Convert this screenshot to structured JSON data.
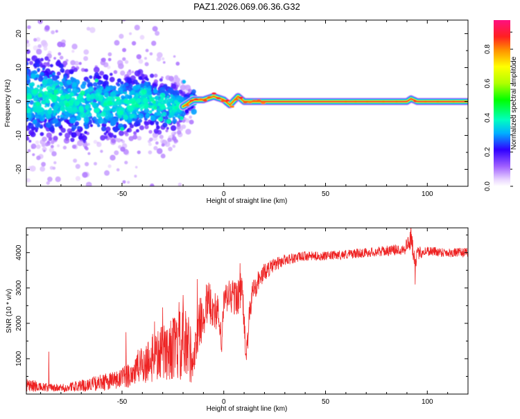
{
  "title": "PAZ1.2026.069.06.36.G32",
  "chart_data": [
    {
      "type": "heatmap",
      "xlabel": "Height of straight line (km)",
      "ylabel": "Frequency (Hz)",
      "xlim": [
        -97,
        120
      ],
      "ylim": [
        -25,
        24
      ],
      "xticks": [
        -50,
        0,
        50,
        100
      ],
      "xtick_labels": [
        "-50",
        "0",
        "50",
        "100"
      ],
      "yticks": [
        -20,
        -10,
        0,
        10,
        20
      ],
      "ytick_labels": [
        "-20",
        "-10",
        "0",
        "10",
        "20"
      ],
      "colorbar": {
        "label": "Normalized spectral amplitude",
        "range": [
          0,
          1
        ],
        "ticks": [
          0.0,
          0.2,
          0.4,
          0.6,
          0.8
        ],
        "tick_labels": [
          "0.0",
          "0.2",
          "0.4",
          "0.6",
          "0.8"
        ],
        "colormap": "rainbow-magenta"
      },
      "description_points": {
        "ridge": [
          [
            -97,
            1.5
          ],
          [
            -80,
            1.0
          ],
          [
            -70,
            -1.0
          ],
          [
            -60,
            -0.5
          ],
          [
            -50,
            -1.5
          ],
          [
            -40,
            0.5
          ],
          [
            -30,
            -1.5
          ],
          [
            -20,
            -1.5
          ],
          [
            -15,
            0.5
          ],
          [
            -10,
            0.5
          ],
          [
            -5,
            1.5
          ],
          [
            0,
            0.5
          ],
          [
            3,
            -1.0
          ],
          [
            7,
            1.5
          ],
          [
            10,
            0.0
          ],
          [
            20,
            0.0
          ],
          [
            50,
            0.0
          ],
          [
            90,
            0.0
          ],
          [
            92,
            0.8
          ],
          [
            95,
            0.0
          ],
          [
            120,
            0.0
          ]
        ],
        "spread_hz": [
          [
            -97,
            9
          ],
          [
            -60,
            7
          ],
          [
            -40,
            6
          ],
          [
            -25,
            5
          ],
          [
            -18,
            2
          ],
          [
            -10,
            1.2
          ],
          [
            0,
            1.2
          ],
          [
            10,
            1.0
          ],
          [
            20,
            0.6
          ],
          [
            120,
            0.6
          ]
        ]
      }
    },
    {
      "type": "line",
      "xlabel": "Height of straight line (km)",
      "ylabel": "SNR (10 * v/v)",
      "xlim": [
        -97,
        120
      ],
      "ylim": [
        0,
        4700
      ],
      "xticks": [
        -50,
        0,
        50,
        100
      ],
      "xtick_labels": [
        "-50",
        "0",
        "50",
        "100"
      ],
      "yticks": [
        1000,
        2000,
        3000,
        4000
      ],
      "ytick_labels": [
        "1000",
        "2000",
        "3000",
        "4000"
      ],
      "color": "#ee2222",
      "series": [
        {
          "name": "SNR",
          "x": [
            -97,
            -90,
            -80,
            -70,
            -60,
            -50,
            -45,
            -40,
            -35,
            -30,
            -25,
            -20,
            -17,
            -15,
            -12,
            -10,
            -8,
            -5,
            -3,
            -1,
            0,
            3,
            6,
            9,
            11,
            12,
            14,
            17,
            20,
            25,
            30,
            40,
            50,
            60,
            70,
            80,
            88,
            90,
            92,
            94,
            96,
            100,
            110,
            120
          ],
          "y": [
            250,
            180,
            160,
            220,
            320,
            420,
            600,
            850,
            1000,
            1150,
            1300,
            1350,
            1200,
            900,
            2000,
            2250,
            2600,
            2400,
            2300,
            1400,
            2600,
            2800,
            2700,
            3000,
            1000,
            1800,
            2900,
            3200,
            3450,
            3650,
            3800,
            3900,
            3900,
            3950,
            4000,
            4050,
            4100,
            4200,
            4400,
            3800,
            4000,
            4050,
            4000,
            4000
          ],
          "noise": [
            250,
            140,
            120,
            180,
            240,
            320,
            420,
            600,
            700,
            800,
            900,
            1100,
            1200,
            400,
            700,
            700,
            700,
            600,
            600,
            400,
            500,
            600,
            600,
            600,
            300,
            500,
            400,
            350,
            280,
            220,
            180,
            150,
            140,
            150,
            150,
            160,
            180,
            300,
            350,
            300,
            200,
            160,
            150,
            150
          ],
          "spikes": [
            [
              -86,
              1200
            ],
            [
              -48,
              1750
            ],
            [
              -34,
              2050
            ],
            [
              -30,
              2450
            ],
            [
              -22,
              2600
            ],
            [
              -20,
              2800
            ],
            [
              -13,
              3250
            ],
            [
              8,
              3700
            ],
            [
              15,
              3200
            ],
            [
              92,
              4700
            ],
            [
              94,
              3100
            ]
          ]
        }
      ]
    }
  ]
}
